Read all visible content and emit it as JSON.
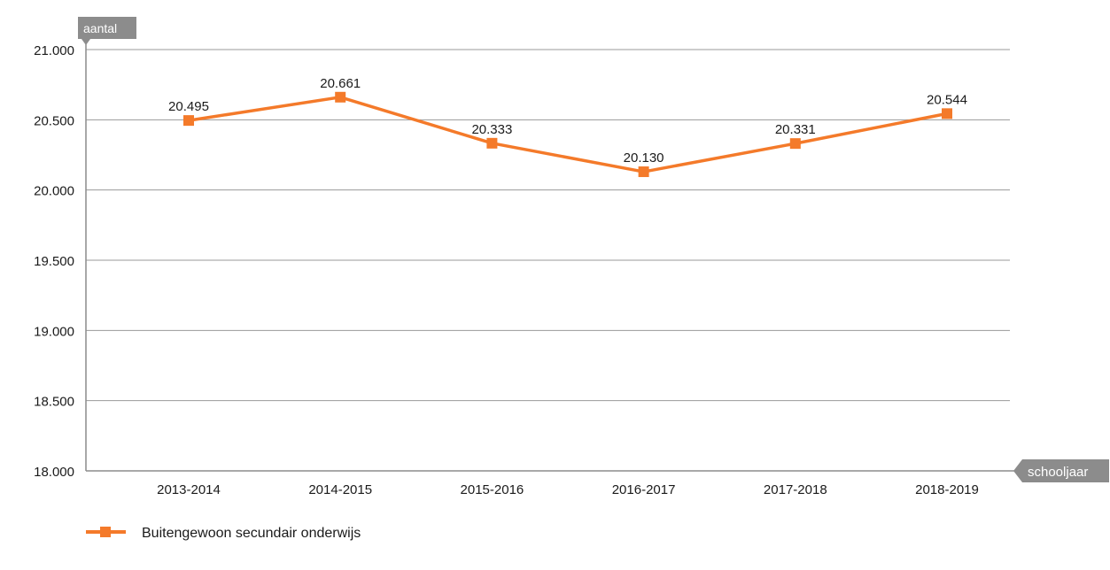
{
  "chart_data": {
    "type": "line",
    "title": "",
    "ylabel": "aantal",
    "xlabel": "schooljaar",
    "ylim": [
      18000,
      21000
    ],
    "yticks": [
      18000,
      18500,
      19000,
      19500,
      20000,
      20500,
      21000
    ],
    "ytick_labels": [
      "18.000",
      "18.500",
      "19.000",
      "19.500",
      "20.000",
      "20.500",
      "21.000"
    ],
    "categories": [
      "2013-2014",
      "2014-2015",
      "2015-2016",
      "2016-2017",
      "2017-2018",
      "2018-2019"
    ],
    "series": [
      {
        "name": "Buitengewoon secundair onderwijs",
        "values": [
          20495,
          20661,
          20333,
          20130,
          20331,
          20544
        ],
        "value_labels": [
          "20.495",
          "20.661",
          "20.333",
          "20.130",
          "20.331",
          "20.544"
        ],
        "color": "#f47a2a"
      }
    ],
    "grid": true,
    "legend_position": "bottom-left",
    "colors": {
      "grid": "#9a9a9a",
      "axis": "#8c8c8c",
      "tag_background": "#8c8c8c",
      "tag_text": "#ffffff",
      "text": "#1a1a1a"
    }
  }
}
